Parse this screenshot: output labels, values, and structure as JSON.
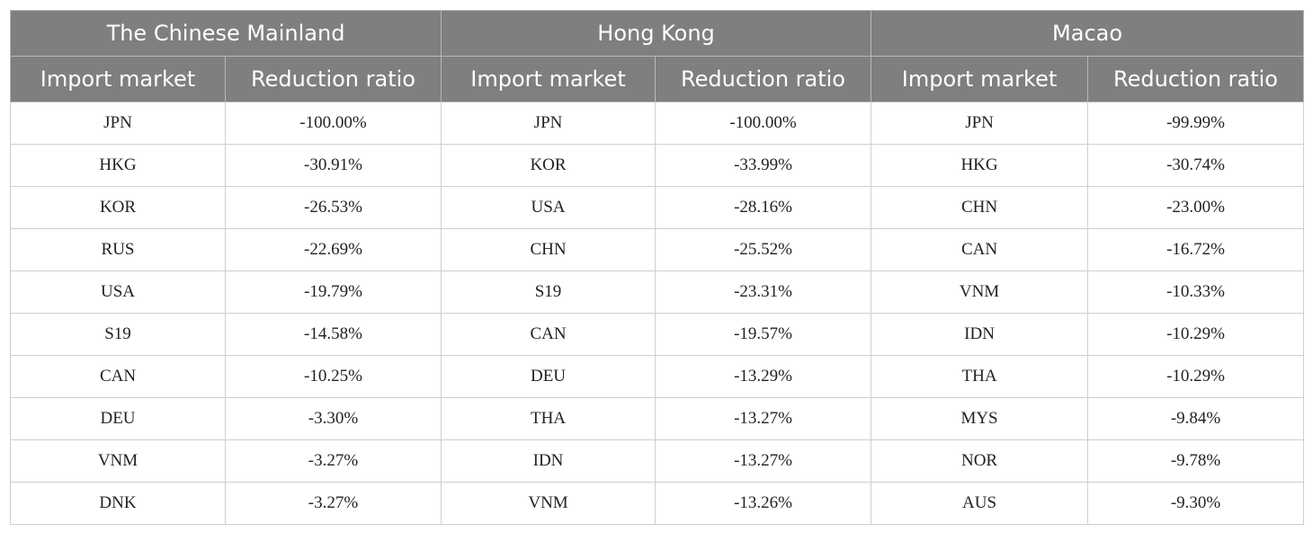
{
  "regions": [
    {
      "name": "The Chinese Mainland"
    },
    {
      "name": "Hong Kong"
    },
    {
      "name": "Macao"
    }
  ],
  "columns": {
    "market": "Import market",
    "ratio": "Reduction ratio"
  },
  "rows": [
    {
      "cm_market": "JPN",
      "cm_ratio": "-100.00%",
      "hk_market": "JPN",
      "hk_ratio": "-100.00%",
      "mo_market": "JPN",
      "mo_ratio": "-99.99%"
    },
    {
      "cm_market": "HKG",
      "cm_ratio": "-30.91%",
      "hk_market": "KOR",
      "hk_ratio": "-33.99%",
      "mo_market": "HKG",
      "mo_ratio": "-30.74%"
    },
    {
      "cm_market": "KOR",
      "cm_ratio": "-26.53%",
      "hk_market": "USA",
      "hk_ratio": "-28.16%",
      "mo_market": "CHN",
      "mo_ratio": "-23.00%"
    },
    {
      "cm_market": "RUS",
      "cm_ratio": "-22.69%",
      "hk_market": "CHN",
      "hk_ratio": "-25.52%",
      "mo_market": "CAN",
      "mo_ratio": "-16.72%"
    },
    {
      "cm_market": "USA",
      "cm_ratio": "-19.79%",
      "hk_market": "S19",
      "hk_ratio": "-23.31%",
      "mo_market": "VNM",
      "mo_ratio": "-10.33%"
    },
    {
      "cm_market": "S19",
      "cm_ratio": "-14.58%",
      "hk_market": "CAN",
      "hk_ratio": "-19.57%",
      "mo_market": "IDN",
      "mo_ratio": "-10.29%"
    },
    {
      "cm_market": "CAN",
      "cm_ratio": "-10.25%",
      "hk_market": "DEU",
      "hk_ratio": "-13.29%",
      "mo_market": "THA",
      "mo_ratio": "-10.29%"
    },
    {
      "cm_market": "DEU",
      "cm_ratio": "-3.30%",
      "hk_market": "THA",
      "hk_ratio": "-13.27%",
      "mo_market": "MYS",
      "mo_ratio": "-9.84%"
    },
    {
      "cm_market": "VNM",
      "cm_ratio": "-3.27%",
      "hk_market": "IDN",
      "hk_ratio": "-13.27%",
      "mo_market": "NOR",
      "mo_ratio": "-9.78%"
    },
    {
      "cm_market": "DNK",
      "cm_ratio": "-3.27%",
      "hk_market": "VNM",
      "hk_ratio": "-13.26%",
      "mo_market": "AUS",
      "mo_ratio": "-9.30%"
    }
  ],
  "colors": {
    "header_bg": "#7f7f7f",
    "header_text": "#ffffff",
    "grid": "#cfcfcf"
  }
}
